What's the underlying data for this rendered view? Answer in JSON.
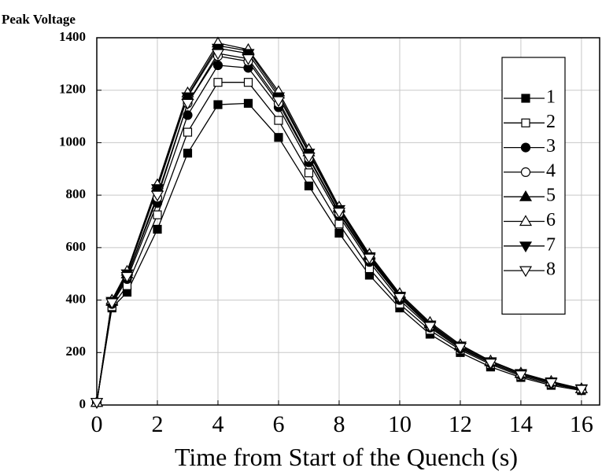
{
  "chart_data": {
    "type": "line",
    "ylabel": "Peak Voltage",
    "xlabel": "Time from Start of the Quench (s)",
    "x": [
      0,
      0.5,
      1,
      2,
      3,
      4,
      5,
      6,
      7,
      8,
      9,
      10,
      11,
      12,
      13,
      14,
      15,
      16
    ],
    "series": [
      {
        "name": "1",
        "color": "#000000",
        "marker": "square-filled",
        "values": [
          10,
          370,
          430,
          670,
          960,
          1145,
          1150,
          1020,
          835,
          655,
          495,
          370,
          270,
          200,
          145,
          105,
          75,
          55
        ]
      },
      {
        "name": "2",
        "color": "#000000",
        "marker": "square-open",
        "values": [
          10,
          375,
          455,
          725,
          1040,
          1230,
          1230,
          1085,
          885,
          690,
          520,
          385,
          285,
          210,
          155,
          110,
          80,
          58
        ]
      },
      {
        "name": "3",
        "color": "#000000",
        "marker": "circle-filled",
        "values": [
          10,
          385,
          480,
          770,
          1105,
          1295,
          1285,
          1135,
          925,
          720,
          545,
          400,
          295,
          215,
          160,
          115,
          85,
          60
        ]
      },
      {
        "name": "4",
        "color": "#000000",
        "marker": "circle-open",
        "values": [
          10,
          390,
          490,
          790,
          1150,
          1330,
          1310,
          1150,
          940,
          730,
          555,
          410,
          300,
          220,
          160,
          115,
          85,
          60
        ]
      },
      {
        "name": "5",
        "color": "#000000",
        "marker": "triangle-up-filled",
        "values": [
          10,
          395,
          500,
          830,
          1180,
          1370,
          1350,
          1185,
          965,
          750,
          570,
          420,
          310,
          225,
          165,
          120,
          88,
          62
        ]
      },
      {
        "name": "6",
        "color": "#000000",
        "marker": "triangle-up-open",
        "values": [
          10,
          400,
          510,
          840,
          1190,
          1380,
          1355,
          1195,
          975,
          755,
          575,
          425,
          315,
          230,
          168,
          122,
          90,
          62
        ]
      },
      {
        "name": "7",
        "color": "#000000",
        "marker": "triangle-down-filled",
        "values": [
          10,
          395,
          500,
          825,
          1175,
          1360,
          1340,
          1175,
          960,
          745,
          565,
          415,
          305,
          225,
          165,
          120,
          88,
          62
        ]
      },
      {
        "name": "8",
        "color": "#000000",
        "marker": "triangle-down-open",
        "values": [
          10,
          390,
          490,
          800,
          1150,
          1340,
          1320,
          1160,
          945,
          735,
          560,
          410,
          300,
          220,
          160,
          115,
          85,
          60
        ]
      }
    ],
    "xlim": [
      0,
      16.6
    ],
    "xticks": [
      0,
      2,
      4,
      6,
      8,
      10,
      12,
      14,
      16
    ],
    "ylim": [
      0,
      1400
    ],
    "yticks": [
      0,
      200,
      400,
      600,
      800,
      1000,
      1200,
      1400
    ],
    "grid": true,
    "legend": "upper right"
  }
}
